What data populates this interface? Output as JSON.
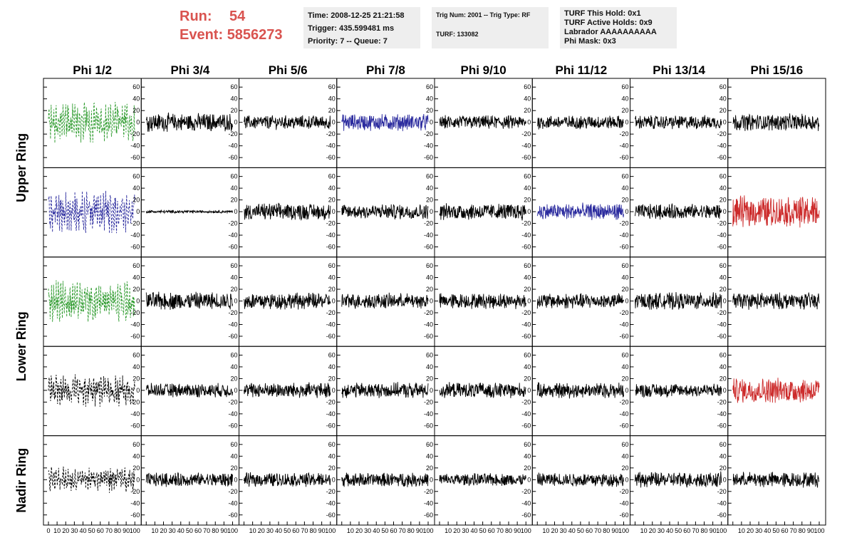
{
  "header": {
    "run_label": "Run:",
    "run_value": "54",
    "event_label": "Event:",
    "event_value": "5856273",
    "time": "Time: 2008-12-25 21:21:58",
    "trigger": "Trigger: 435.599481 ms",
    "priority": "Priority: 7 -- Queue: 7",
    "trig_num": "Trig Num: 2001 -- Trig Type: RF",
    "turf": "TURF: 133082",
    "turf_this_hold": "TURF This Hold: 0x1",
    "turf_active_holds": "TURF Active Holds: 0x9",
    "labrador": "Labrador AAAAAAAAAA",
    "phi_mask": "Phi Mask: 0x3"
  },
  "chart_data": {
    "type": "line",
    "columns": [
      "Phi 1/2",
      "Phi 3/4",
      "Phi 5/6",
      "Phi 7/8",
      "Phi 9/10",
      "Phi 11/12",
      "Phi 13/14",
      "Phi 15/16"
    ],
    "row_groups": [
      "Upper Ring",
      "Lower Ring",
      "Nadir Ring"
    ],
    "ylim": [
      -70,
      70
    ],
    "yticks": [
      -60,
      -40,
      -20,
      0,
      20,
      40,
      60
    ],
    "xlim": [
      0,
      100
    ],
    "xticks": [
      0,
      10,
      20,
      30,
      40,
      50,
      60,
      70,
      80,
      90,
      100
    ],
    "colors": {
      "black": "#000000",
      "green": "#2e9b2e",
      "blue": "#2b2b9e",
      "red": "#cc2a2a"
    },
    "panels": [
      [
        {
          "color": "green",
          "dashed": true,
          "amp": 28
        },
        {
          "color": "black",
          "dashed": false,
          "amp": 13
        },
        {
          "color": "black",
          "dashed": false,
          "amp": 10
        },
        {
          "color": "blue",
          "dashed": false,
          "amp": 12
        },
        {
          "color": "black",
          "dashed": false,
          "amp": 10
        },
        {
          "color": "black",
          "dashed": false,
          "amp": 10
        },
        {
          "color": "black",
          "dashed": false,
          "amp": 10
        },
        {
          "color": "black",
          "dashed": false,
          "amp": 12
        }
      ],
      [
        {
          "color": "blue",
          "dashed": true,
          "amp": 30
        },
        {
          "color": "black",
          "dashed": false,
          "amp": 2
        },
        {
          "color": "black",
          "dashed": false,
          "amp": 12
        },
        {
          "color": "black",
          "dashed": false,
          "amp": 11
        },
        {
          "color": "black",
          "dashed": false,
          "amp": 12
        },
        {
          "color": "blue",
          "dashed": false,
          "amp": 12
        },
        {
          "color": "black",
          "dashed": false,
          "amp": 11
        },
        {
          "color": "red",
          "dashed": false,
          "amp": 22
        }
      ],
      [
        {
          "color": "green",
          "dashed": true,
          "amp": 28
        },
        {
          "color": "black",
          "dashed": false,
          "amp": 13
        },
        {
          "color": "black",
          "dashed": false,
          "amp": 12
        },
        {
          "color": "black",
          "dashed": false,
          "amp": 11
        },
        {
          "color": "black",
          "dashed": false,
          "amp": 11
        },
        {
          "color": "black",
          "dashed": false,
          "amp": 11
        },
        {
          "color": "black",
          "dashed": false,
          "amp": 12
        },
        {
          "color": "black",
          "dashed": false,
          "amp": 12
        }
      ],
      [
        {
          "color": "black",
          "dashed": true,
          "amp": 22
        },
        {
          "color": "black",
          "dashed": false,
          "amp": 10
        },
        {
          "color": "black",
          "dashed": false,
          "amp": 11
        },
        {
          "color": "black",
          "dashed": false,
          "amp": 11
        },
        {
          "color": "black",
          "dashed": false,
          "amp": 11
        },
        {
          "color": "black",
          "dashed": false,
          "amp": 11
        },
        {
          "color": "black",
          "dashed": false,
          "amp": 10
        },
        {
          "color": "red",
          "dashed": false,
          "amp": 18
        }
      ],
      [
        {
          "color": "black",
          "dashed": true,
          "amp": 18
        },
        {
          "color": "black",
          "dashed": false,
          "amp": 10
        },
        {
          "color": "black",
          "dashed": false,
          "amp": 10
        },
        {
          "color": "black",
          "dashed": false,
          "amp": 10
        },
        {
          "color": "black",
          "dashed": false,
          "amp": 9
        },
        {
          "color": "black",
          "dashed": false,
          "amp": 10
        },
        {
          "color": "black",
          "dashed": false,
          "amp": 11
        },
        {
          "color": "black",
          "dashed": false,
          "amp": 11
        }
      ]
    ]
  }
}
